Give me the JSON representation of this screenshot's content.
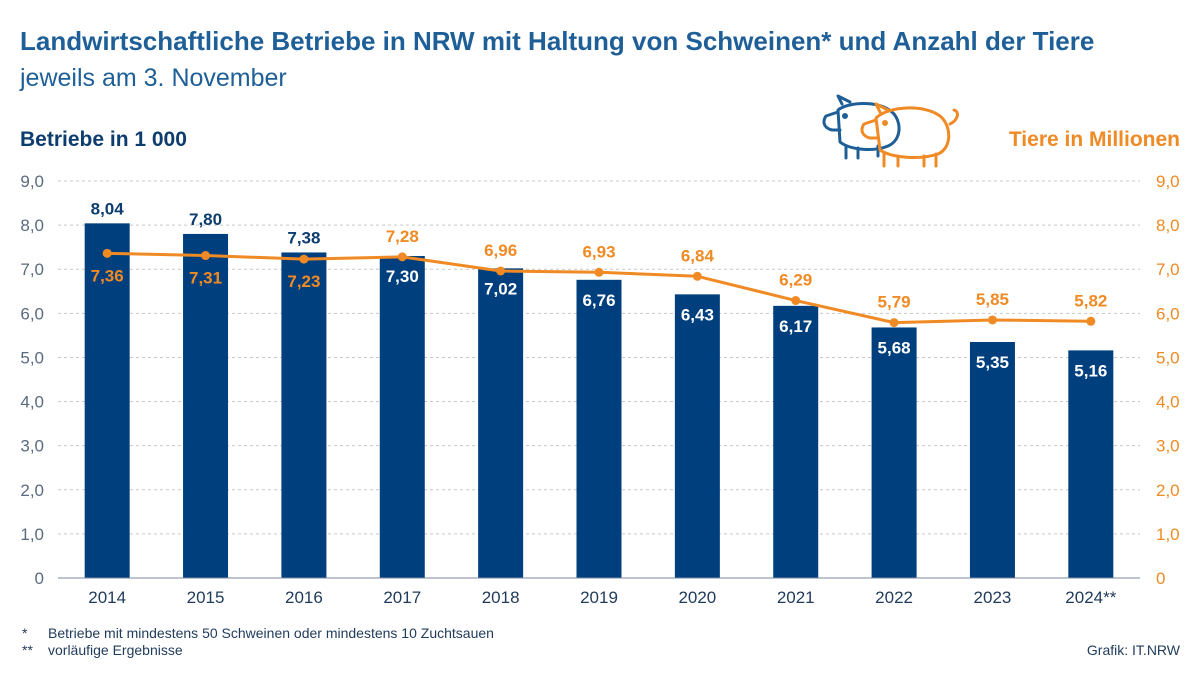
{
  "title": "Landwirtschaftliche Betriebe in NRW mit Haltung von Schweinen* und Anzahl der Tiere",
  "subtitle": "jeweils am 3. November",
  "left_axis_title": "Betriebe in 1 000",
  "right_axis_title": "Tiere in Millionen",
  "footnotes": [
    {
      "mark": "*",
      "text": "Betriebe mit mindestens 50 Schweinen oder mindestens 10 Zuchtsauen"
    },
    {
      "mark": "**",
      "text": "vorläufige Ergebnisse"
    }
  ],
  "source": "Grafik: IT.NRW",
  "colors": {
    "bar": "#003f7d",
    "line": "#f08a24",
    "title": "#1f5f98",
    "axis_left": "#0d3d6e",
    "grid": "#c8c8c8"
  },
  "icons": [
    "pig-outline-blue-icon",
    "pig-outline-orange-icon"
  ],
  "chart_data": {
    "type": "bar",
    "categories": [
      "2014",
      "2015",
      "2016",
      "2017",
      "2018",
      "2019",
      "2020",
      "2021",
      "2022",
      "2023",
      "2024**"
    ],
    "series": [
      {
        "name": "Betriebe in 1 000",
        "type": "bar",
        "axis": "left",
        "values": [
          8.04,
          7.8,
          7.38,
          7.3,
          7.02,
          6.76,
          6.43,
          6.17,
          5.68,
          5.35,
          5.16
        ],
        "labels": [
          "8,04",
          "7,80",
          "7,38",
          "7,30",
          "7,02",
          "6,76",
          "6,43",
          "6,17",
          "5,68",
          "5,35",
          "5,16"
        ]
      },
      {
        "name": "Tiere in Millionen",
        "type": "line",
        "axis": "right",
        "values": [
          7.36,
          7.31,
          7.23,
          7.28,
          6.96,
          6.93,
          6.84,
          6.29,
          5.79,
          5.85,
          5.82
        ],
        "labels": [
          "7,36",
          "7,31",
          "7,23",
          "7,28",
          "6,96",
          "6,93",
          "6,84",
          "6,29",
          "5,79",
          "5,85",
          "5,82"
        ]
      }
    ],
    "y_left": {
      "range": [
        0,
        9
      ],
      "ticks": [
        "0",
        "1,0",
        "2,0",
        "3,0",
        "4,0",
        "5,0",
        "6,0",
        "7,0",
        "8,0",
        "9,0"
      ]
    },
    "y_right": {
      "range": [
        0,
        9
      ],
      "ticks": [
        "0",
        "1,0",
        "2,0",
        "3,0",
        "4,0",
        "5,0",
        "6,0",
        "7,0",
        "8,0",
        "9,0"
      ]
    },
    "grid": true,
    "legend": "none"
  }
}
